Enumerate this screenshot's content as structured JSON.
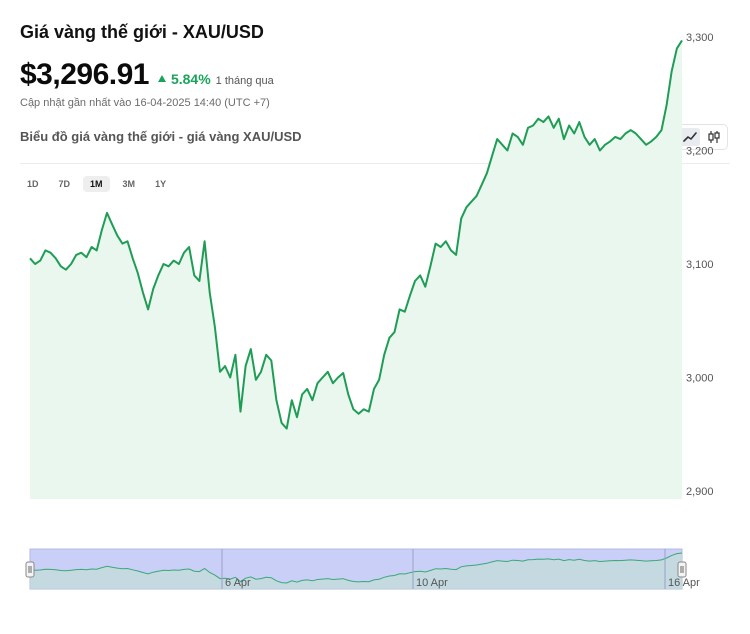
{
  "header": {
    "title": "Giá vàng thế giới - XAU/USD",
    "price": "$3,296.91",
    "change": "5.84%",
    "change_period": "1 tháng qua",
    "updated": "Cập nhật gần nhất vào 16-04-2025 14:40 (UTC +7)",
    "subtitle": "Biểu đồ giá vàng thế giới - giá vàng XAU/USD"
  },
  "chart_mode": {
    "options": [
      "line-chart-icon",
      "candlestick-icon"
    ],
    "selected": "line-chart-icon"
  },
  "ranges": {
    "items": [
      "1D",
      "7D",
      "1M",
      "3M",
      "1Y"
    ],
    "selected": "1M"
  },
  "colors": {
    "line": "#1f9d55",
    "fill": "#e9f7ef",
    "positive": "#1aa35b",
    "navigator_fill": "#c9cff7"
  },
  "chart_data": {
    "type": "area",
    "title": "",
    "xlabel": "",
    "ylabel": "",
    "ylim": [
      2900,
      3320
    ],
    "yticks": [
      2900,
      3000,
      3100,
      3200,
      3300
    ],
    "ytick_labels": [
      "2,900",
      "3,000",
      "3,100",
      "3,200",
      "3,300"
    ],
    "grid": false,
    "series": [
      {
        "values": [
          3105,
          3100,
          3103,
          3112,
          3110,
          3105,
          3098,
          3095,
          3100,
          3108,
          3110,
          3106,
          3115,
          3112,
          3130,
          3145,
          3135,
          3125,
          3118,
          3120,
          3105,
          3092,
          3075,
          3060,
          3078,
          3090,
          3100,
          3098,
          3103,
          3100,
          3110,
          3115,
          3090,
          3085,
          3120,
          3075,
          3045,
          3005,
          3010,
          3000,
          3020,
          2970,
          3010,
          3025,
          2998,
          3005,
          3020,
          3015,
          2980,
          2960,
          2955,
          2980,
          2965,
          2985,
          2990,
          2980,
          2995,
          3000,
          3005,
          2995,
          3000,
          3004,
          2985,
          2972,
          2968,
          2972,
          2970,
          2990,
          2998,
          3020,
          3035,
          3040,
          3060,
          3058,
          3072,
          3085,
          3090,
          3080,
          3098,
          3118,
          3115,
          3120,
          3112,
          3108,
          3140,
          3150,
          3155,
          3160,
          3170,
          3180,
          3195,
          3210,
          3205,
          3200,
          3215,
          3212,
          3205,
          3220,
          3222,
          3228,
          3225,
          3230,
          3220,
          3228,
          3210,
          3222,
          3215,
          3225,
          3212,
          3205,
          3210,
          3200,
          3205,
          3208,
          3212,
          3210,
          3215,
          3218,
          3215,
          3210,
          3205,
          3208,
          3212,
          3218,
          3240,
          3270,
          3290,
          3297
        ]
      }
    ],
    "navigator": {
      "date_labels": [
        "6 Apr",
        "10 Apr",
        "16 Apr"
      ]
    }
  }
}
